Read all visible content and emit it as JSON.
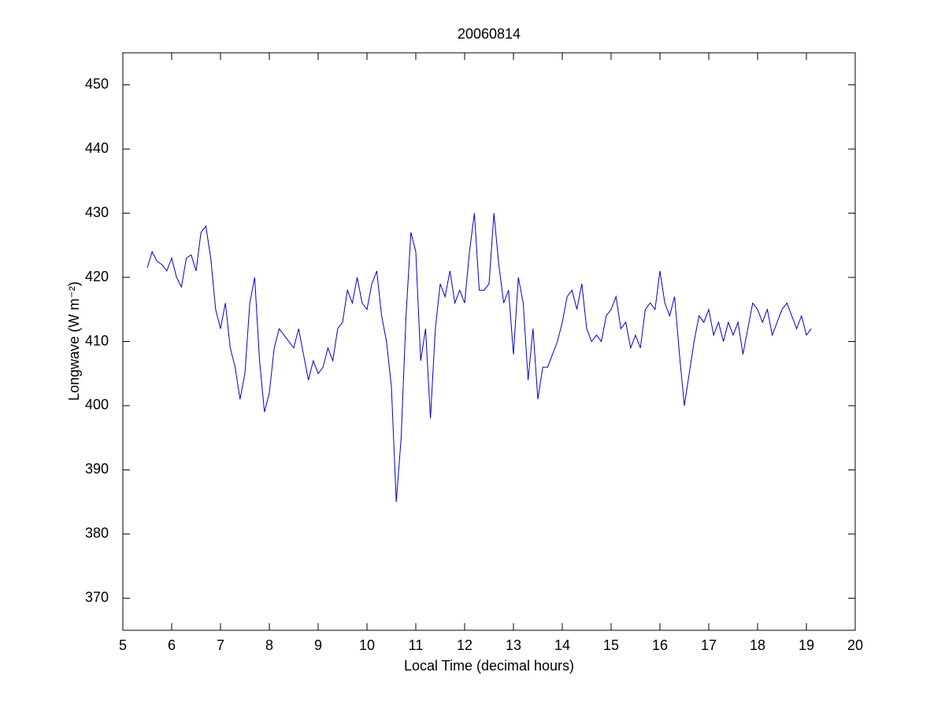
{
  "chart_data": {
    "type": "line",
    "title": "20060814",
    "xlabel": "Local Time (decimal hours)",
    "ylabel": "Longwave (W m⁻²)",
    "x": [
      5.5,
      5.6,
      5.7,
      5.8,
      5.9,
      6.0,
      6.1,
      6.2,
      6.3,
      6.4,
      6.5,
      6.6,
      6.7,
      6.8,
      6.9,
      7.0,
      7.1,
      7.2,
      7.3,
      7.4,
      7.5,
      7.6,
      7.7,
      7.8,
      7.9,
      8.0,
      8.1,
      8.2,
      8.3,
      8.4,
      8.5,
      8.6,
      8.7,
      8.8,
      8.9,
      9.0,
      9.1,
      9.2,
      9.3,
      9.4,
      9.5,
      9.6,
      9.7,
      9.8,
      9.9,
      10.0,
      10.1,
      10.2,
      10.3,
      10.4,
      10.5,
      10.6,
      10.7,
      10.8,
      10.9,
      11.0,
      11.1,
      11.2,
      11.3,
      11.4,
      11.5,
      11.6,
      11.7,
      11.8,
      11.9,
      12.0,
      12.1,
      12.2,
      12.3,
      12.4,
      12.5,
      12.6,
      12.7,
      12.8,
      12.9,
      13.0,
      13.1,
      13.2,
      13.3,
      13.4,
      13.5,
      13.6,
      13.7,
      13.8,
      13.9,
      14.0,
      14.1,
      14.2,
      14.3,
      14.4,
      14.5,
      14.6,
      14.7,
      14.8,
      14.9,
      15.0,
      15.1,
      15.2,
      15.3,
      15.4,
      15.5,
      15.6,
      15.7,
      15.8,
      15.9,
      16.0,
      16.1,
      16.2,
      16.3,
      16.4,
      16.5,
      16.6,
      16.7,
      16.8,
      16.9,
      17.0,
      17.1,
      17.2,
      17.3,
      17.4,
      17.5,
      17.6,
      17.7,
      17.8,
      17.9,
      18.0,
      18.1,
      18.2,
      18.3,
      18.4,
      18.5,
      18.6,
      18.7,
      18.8,
      18.9,
      19.0,
      19.1
    ],
    "series": [
      {
        "color": "#0000cc",
        "values": [
          421.5,
          424,
          422.5,
          422,
          421,
          423,
          420,
          418.5,
          423,
          423.5,
          421,
          427,
          428,
          423,
          415,
          412,
          416,
          409,
          406,
          401,
          405,
          416,
          420,
          407,
          399,
          402,
          409,
          412,
          411,
          410,
          409,
          412,
          408,
          404,
          407,
          405,
          406,
          409,
          407,
          412,
          413,
          418,
          416,
          420,
          416,
          415,
          419,
          421,
          414,
          410,
          403,
          385,
          395,
          414,
          427,
          424,
          407,
          412,
          398,
          412,
          419,
          417,
          421,
          416,
          418,
          416,
          424,
          430,
          418,
          418,
          419,
          430,
          422,
          416,
          418,
          408,
          420,
          416,
          404,
          412,
          401,
          406,
          406,
          408,
          410,
          413,
          417,
          418,
          415,
          419,
          412,
          410,
          411,
          410,
          414,
          415,
          417,
          412,
          413,
          409,
          411,
          409,
          415,
          416,
          415,
          421,
          416,
          414,
          417,
          408,
          400,
          405,
          410,
          414,
          413,
          415,
          411,
          413,
          410,
          413,
          411,
          413,
          408,
          412,
          416,
          415,
          413,
          415,
          411,
          413,
          415,
          416,
          414,
          412,
          414,
          411,
          412
        ]
      }
    ],
    "xlim": [
      5,
      20
    ],
    "xticks": [
      5,
      6,
      7,
      8,
      9,
      10,
      11,
      12,
      13,
      14,
      15,
      16,
      17,
      18,
      19,
      20
    ],
    "ylim": [
      365,
      455
    ],
    "yticks": [
      370,
      380,
      390,
      400,
      410,
      420,
      430,
      440,
      450
    ]
  }
}
